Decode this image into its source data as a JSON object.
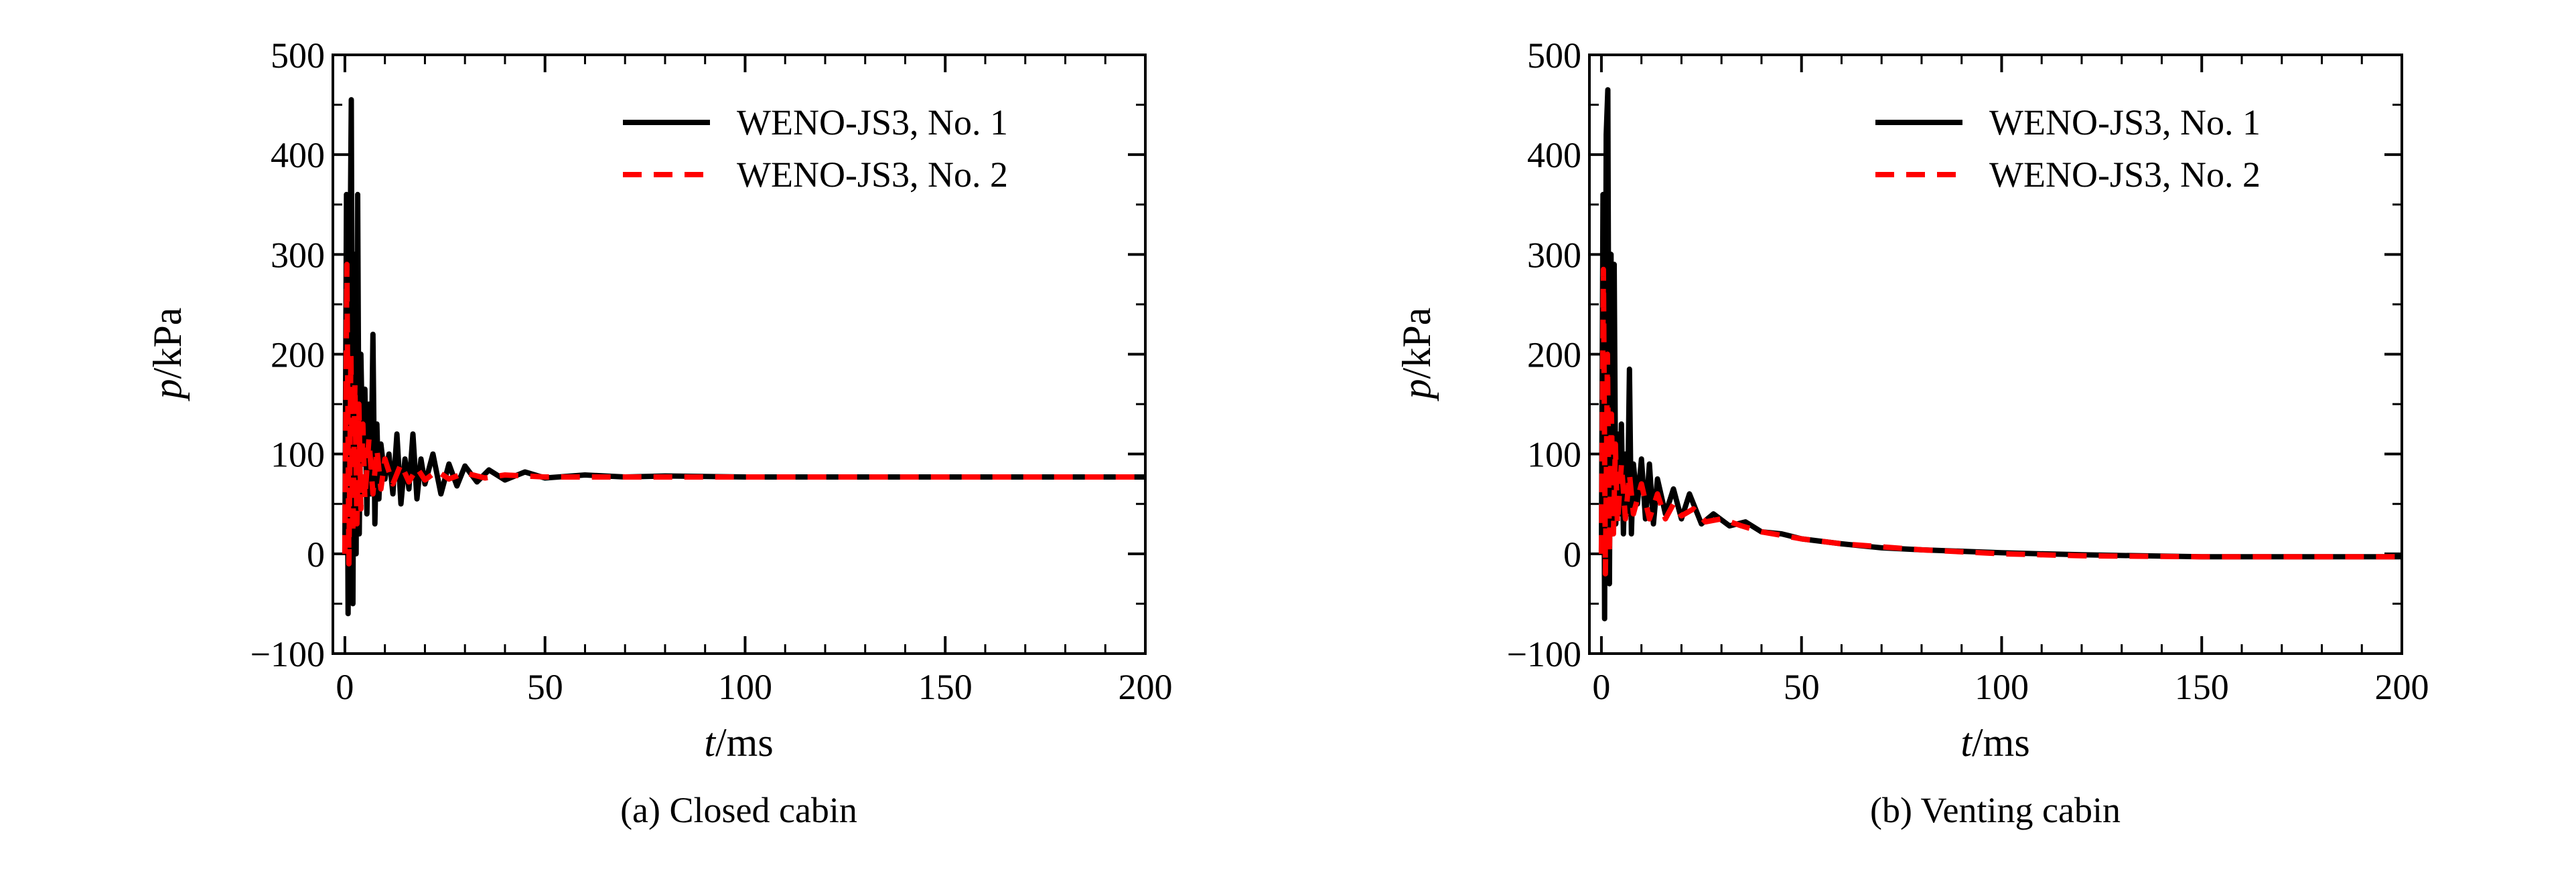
{
  "figure": {
    "panels": [
      {
        "caption": "(a) Closed cabin"
      },
      {
        "caption": "(b) Venting cabin"
      }
    ]
  },
  "colors": {
    "series_1": "#000000",
    "series_2": "#ff0000",
    "axes": "#000000"
  },
  "chart_data": [
    {
      "type": "line",
      "caption": "(a) Closed cabin",
      "xlabel": {
        "italic": "t",
        "unit": "/ms"
      },
      "ylabel": {
        "italic": "p",
        "unit": "/kPa"
      },
      "xlim": [
        -3,
        200
      ],
      "ylim": [
        -100,
        500
      ],
      "xticks": [
        0,
        50,
        100,
        150,
        200
      ],
      "yticks": [
        -100,
        0,
        100,
        200,
        300,
        400,
        500
      ],
      "ytick_labels": [
        "−100",
        "0",
        "100",
        "200",
        "300",
        "400",
        "500"
      ],
      "grid": false,
      "legend": "top-right",
      "series": [
        {
          "name": "WENO-JS3, No. 1",
          "style": "solid",
          "color": "#000000",
          "x": [
            0,
            0.4,
            0.8,
            1.2,
            1.6,
            2.0,
            2.4,
            2.8,
            3.2,
            3.6,
            4.0,
            4.5,
            5.0,
            5.5,
            6.0,
            6.5,
            7.0,
            7.5,
            8.0,
            8.5,
            9.0,
            10,
            11,
            12,
            13,
            14,
            15,
            16,
            17,
            18,
            19,
            20,
            22,
            24,
            26,
            28,
            30,
            33,
            36,
            40,
            45,
            50,
            60,
            70,
            80,
            100,
            120,
            150,
            200
          ],
          "y": [
            0,
            360,
            -60,
            250,
            455,
            -50,
            300,
            0,
            360,
            20,
            200,
            90,
            165,
            40,
            150,
            60,
            220,
            30,
            130,
            55,
            110,
            75,
            100,
            60,
            120,
            50,
            95,
            65,
            120,
            55,
            95,
            70,
            100,
            60,
            90,
            68,
            88,
            72,
            84,
            74,
            82,
            76,
            79,
            77,
            78,
            77,
            77,
            77,
            77
          ]
        },
        {
          "name": "WENO-JS3, No. 2",
          "style": "dashed",
          "color": "#ff0000",
          "x": [
            0,
            0.5,
            1.0,
            1.5,
            2.0,
            2.5,
            3.0,
            3.5,
            4.0,
            4.5,
            5.0,
            6.0,
            7.0,
            8.0,
            9.0,
            10,
            12,
            14,
            16,
            18,
            20,
            23,
            26,
            30,
            35,
            40,
            50,
            60,
            80,
            100,
            150,
            200
          ],
          "y": [
            0,
            290,
            -10,
            200,
            20,
            170,
            30,
            150,
            45,
            130,
            55,
            115,
            60,
            105,
            65,
            95,
            70,
            90,
            72,
            86,
            74,
            83,
            75,
            81,
            76,
            79,
            77,
            77,
            77,
            77,
            77,
            77
          ]
        }
      ]
    },
    {
      "type": "line",
      "caption": "(b) Venting cabin",
      "xlabel": {
        "italic": "t",
        "unit": "/ms"
      },
      "ylabel": {
        "italic": "p",
        "unit": "/kPa"
      },
      "xlim": [
        -3,
        200
      ],
      "ylim": [
        -100,
        500
      ],
      "xticks": [
        0,
        50,
        100,
        150,
        200
      ],
      "yticks": [
        -100,
        0,
        100,
        200,
        300,
        400,
        500
      ],
      "ytick_labels": [
        "−100",
        "0",
        "100",
        "200",
        "300",
        "400",
        "500"
      ],
      "grid": false,
      "legend": "top-right",
      "series": [
        {
          "name": "WENO-JS3, No. 1",
          "style": "solid",
          "color": "#000000",
          "x": [
            0,
            0.4,
            0.8,
            1.2,
            1.6,
            2.0,
            2.4,
            2.8,
            3.2,
            3.6,
            4.0,
            4.5,
            5.0,
            5.5,
            6.0,
            6.5,
            7.0,
            7.5,
            8.0,
            9.0,
            10,
            11,
            12,
            13,
            14,
            16,
            18,
            20,
            22,
            25,
            28,
            32,
            36,
            40,
            45,
            50,
            60,
            70,
            80,
            100,
            120,
            150,
            200
          ],
          "y": [
            0,
            360,
            -65,
            420,
            465,
            -30,
            300,
            20,
            290,
            30,
            120,
            40,
            130,
            20,
            100,
            40,
            185,
            20,
            90,
            50,
            95,
            35,
            90,
            30,
            75,
            40,
            65,
            35,
            60,
            30,
            40,
            28,
            32,
            22,
            20,
            15,
            10,
            6,
            4,
            1,
            -1,
            -3,
            -3
          ]
        },
        {
          "name": "WENO-JS3, No. 2",
          "style": "dashed",
          "color": "#ff0000",
          "x": [
            0,
            0.5,
            1.0,
            1.5,
            2.0,
            2.5,
            3.0,
            3.5,
            4.0,
            5.0,
            6.0,
            7.0,
            8.0,
            10,
            12,
            14,
            16,
            18,
            20,
            23,
            26,
            30,
            35,
            40,
            50,
            60,
            80,
            100,
            120,
            150,
            200
          ],
          "y": [
            0,
            285,
            -20,
            200,
            0,
            140,
            20,
            110,
            30,
            90,
            35,
            80,
            40,
            70,
            35,
            60,
            35,
            50,
            38,
            45,
            32,
            35,
            28,
            22,
            15,
            10,
            4,
            0,
            -2,
            -3,
            -3
          ]
        }
      ]
    }
  ]
}
